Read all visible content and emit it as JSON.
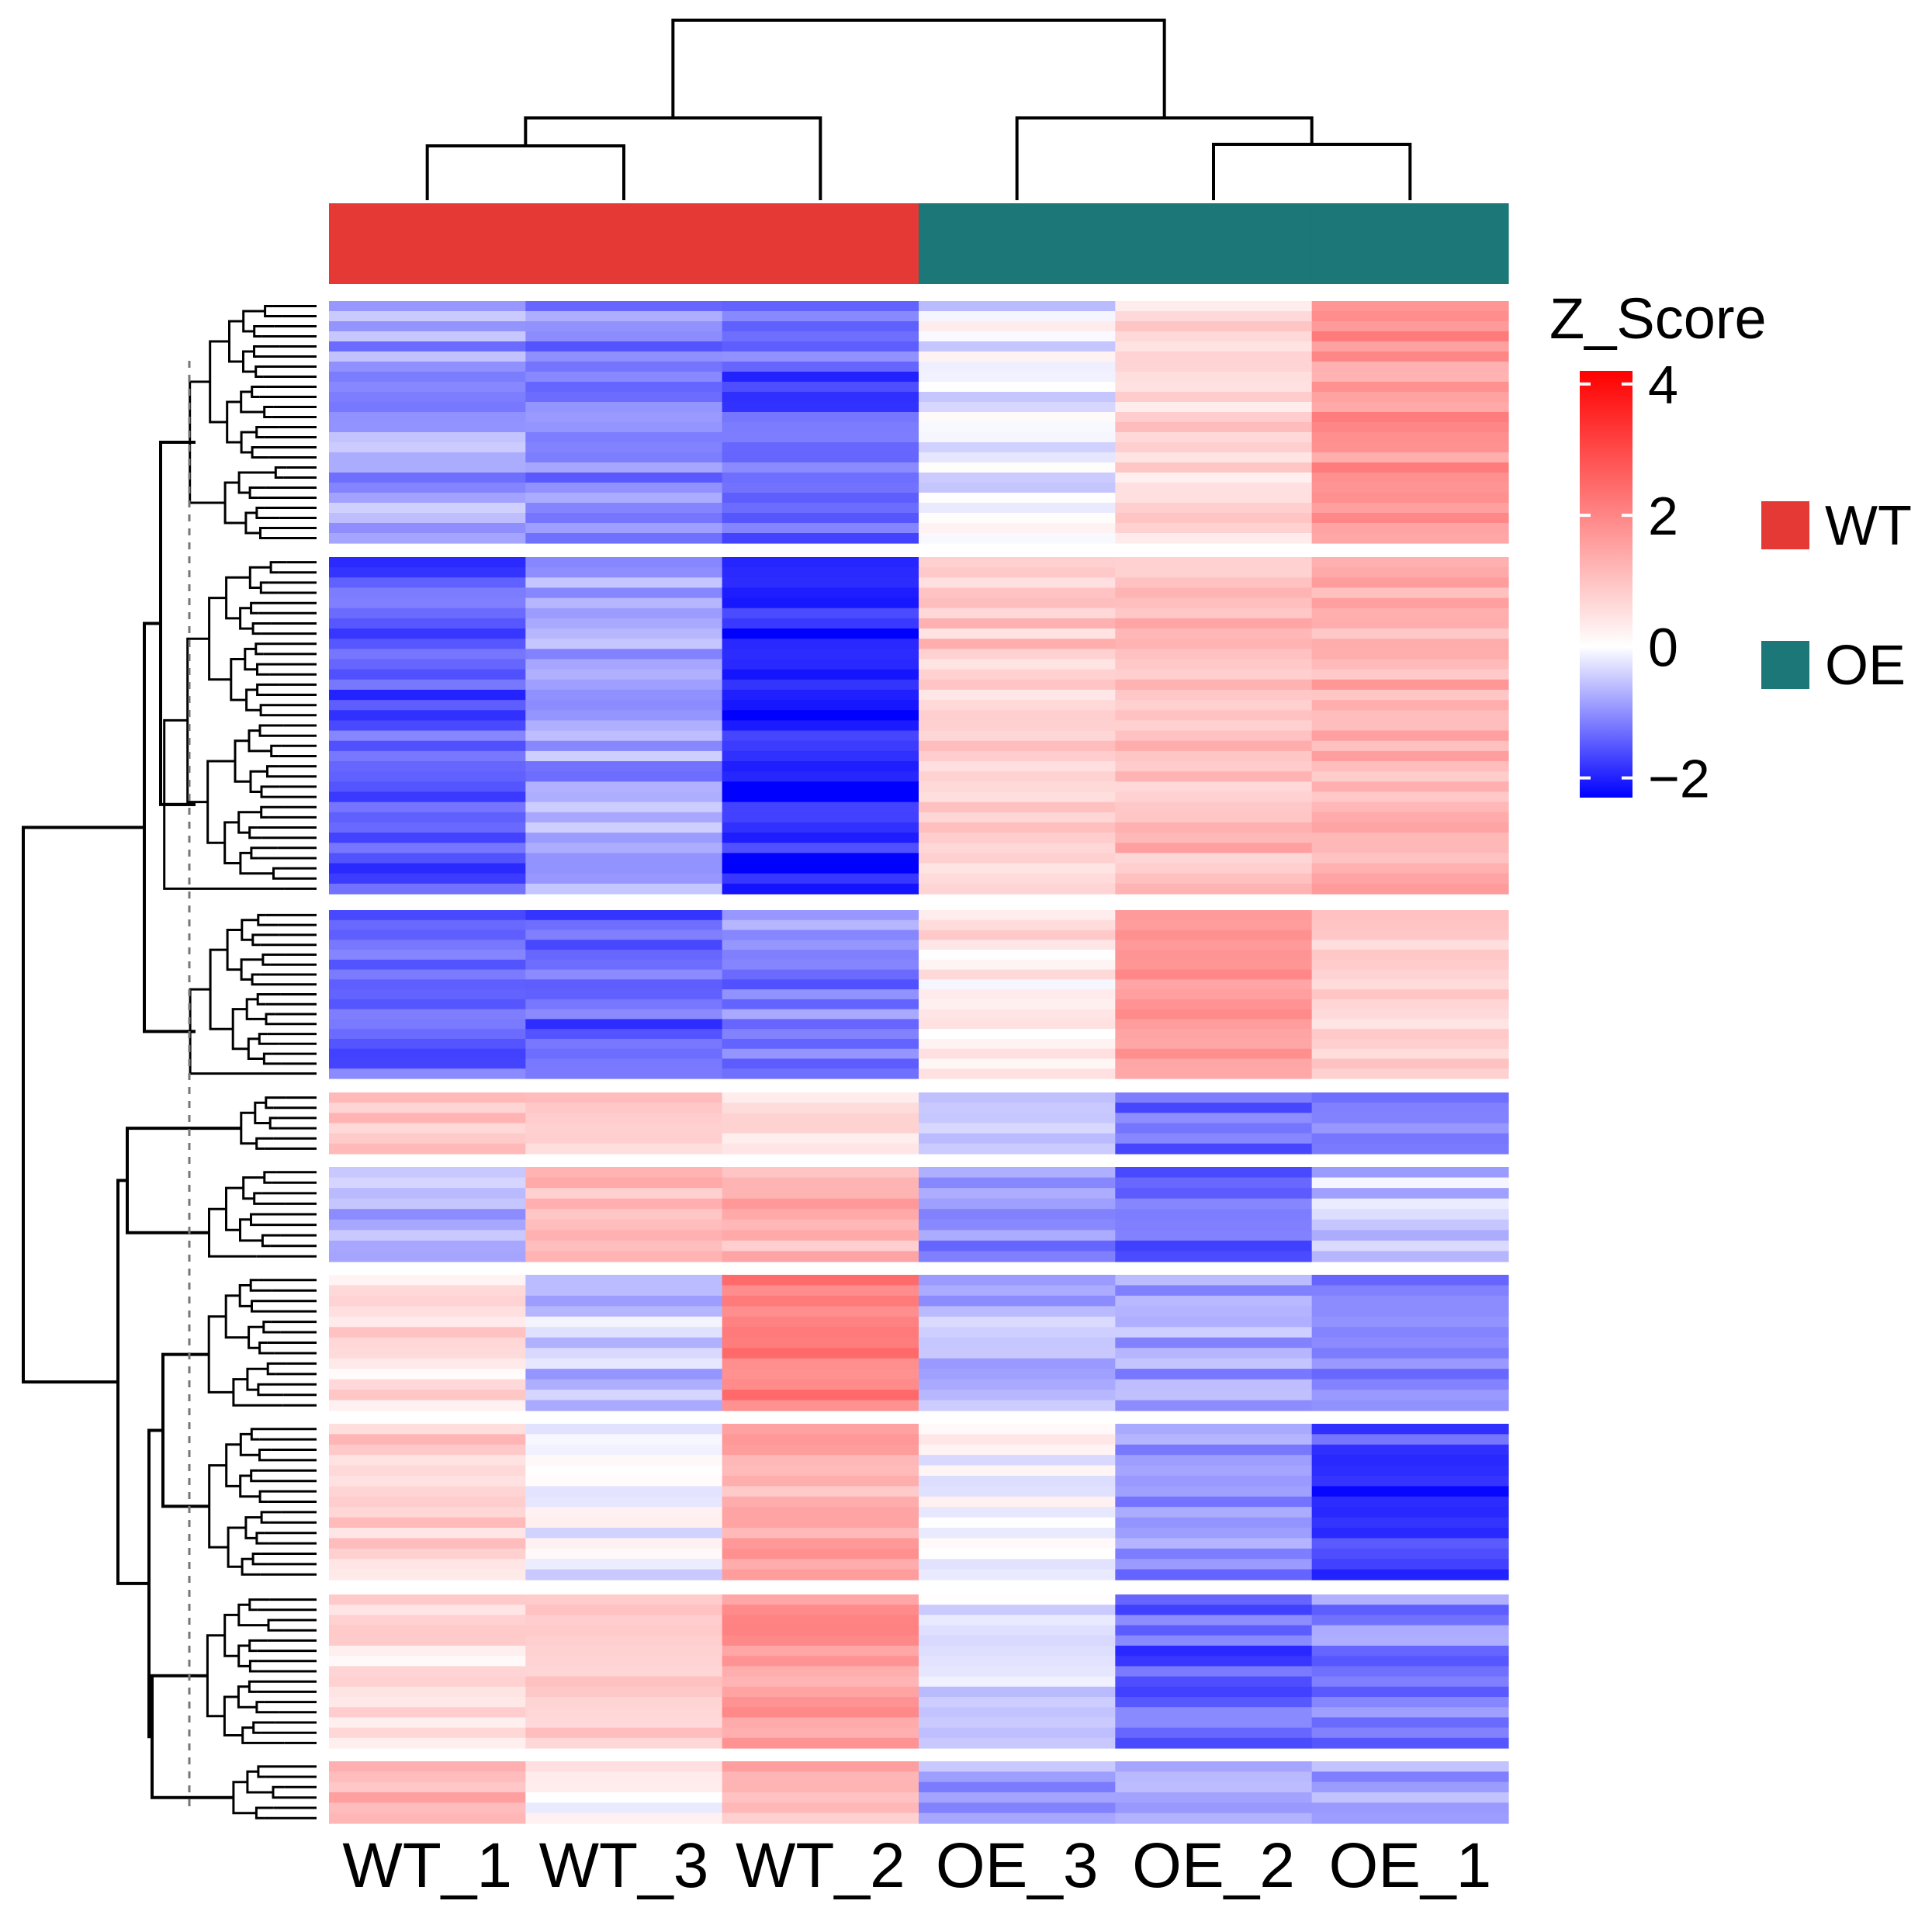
{
  "chart_data": {
    "type": "heatmap",
    "title": "",
    "columns": [
      "WT_1",
      "WT_3",
      "WT_2",
      "OE_3",
      "OE_2",
      "OE_1"
    ],
    "column_groups": [
      "WT",
      "WT",
      "WT",
      "OE",
      "OE",
      "OE"
    ],
    "colorbar": {
      "title": "Z_Score",
      "min": -2.3,
      "max": 4.2,
      "ticks": [
        4,
        2,
        0,
        -2
      ],
      "tick_labels": [
        "4",
        "2",
        "0",
        "−2"
      ],
      "colors": {
        "low": "#0000ff",
        "mid": "#ffffff",
        "high": "#ff0000"
      }
    },
    "group_legend": [
      {
        "label": "WT",
        "color": "#e53935"
      },
      {
        "label": "OE",
        "color": "#1b7778"
      }
    ],
    "row_clusters": [
      {
        "cluster": 1,
        "rows": 24,
        "mean_z": [
          -0.9,
          -1.1,
          -1.5,
          -0.2,
          0.7,
          1.7
        ]
      },
      {
        "cluster": 2,
        "rows": 33,
        "mean_z": [
          -1.5,
          -0.8,
          -2.0,
          0.8,
          1.1,
          1.3
        ]
      },
      {
        "cluster": 3,
        "rows": 17,
        "mean_z": [
          -1.3,
          -1.4,
          -1.1,
          0.4,
          1.8,
          0.8
        ]
      },
      {
        "cluster": 4,
        "rows": 6,
        "mean_z": [
          0.9,
          0.8,
          0.5,
          -0.4,
          -1.3,
          -1.2
        ]
      },
      {
        "cluster": 5,
        "rows": 9,
        "mean_z": [
          -0.6,
          1.1,
          1.3,
          -0.9,
          -1.3,
          -0.5
        ]
      },
      {
        "cluster": 6,
        "rows": 13,
        "mean_z": [
          0.5,
          -0.5,
          2.2,
          -0.6,
          -0.8,
          -1.0
        ]
      },
      {
        "cluster": 7,
        "rows": 15,
        "mean_z": [
          0.7,
          -0.1,
          1.4,
          -0.1,
          -1.0,
          -1.7
        ]
      },
      {
        "cluster": 8,
        "rows": 15,
        "mean_z": [
          0.5,
          0.8,
          1.6,
          -0.4,
          -1.5,
          -1.2
        ]
      },
      {
        "cluster": 9,
        "rows": 6,
        "mean_z": [
          1.1,
          0.1,
          1.2,
          -0.9,
          -0.9,
          -0.9
        ]
      }
    ],
    "column_dendrogram": "((WT_1,WT_3),WT_2),(OE_3,(OE_2,OE_1))",
    "row_dendrogram_split": "((1,2),3),((4,5),((6,7),(8,9)))"
  }
}
